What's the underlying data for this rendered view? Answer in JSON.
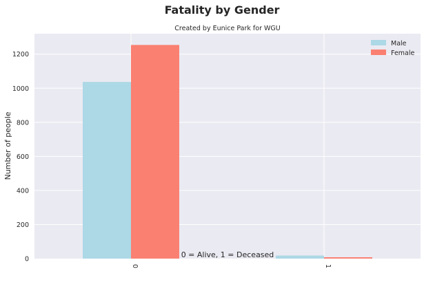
{
  "chart_data": {
    "type": "bar",
    "title": "Fatality by Gender",
    "subtitle": "Created by Eunice Park for WGU",
    "xlabel": "0 = Alive, 1 = Deceased",
    "ylabel": "Number of people",
    "categories": [
      "0",
      "1"
    ],
    "ylim": [
      0,
      1320
    ],
    "yticks": [
      0,
      200,
      400,
      600,
      800,
      1000,
      1200
    ],
    "grid": true,
    "legend_position": "top-right",
    "series": [
      {
        "name": "Male",
        "color": "#add8e6",
        "values": [
          1037,
          18
        ]
      },
      {
        "name": "Female",
        "color": "#fa8072",
        "values": [
          1254,
          8
        ]
      }
    ]
  }
}
